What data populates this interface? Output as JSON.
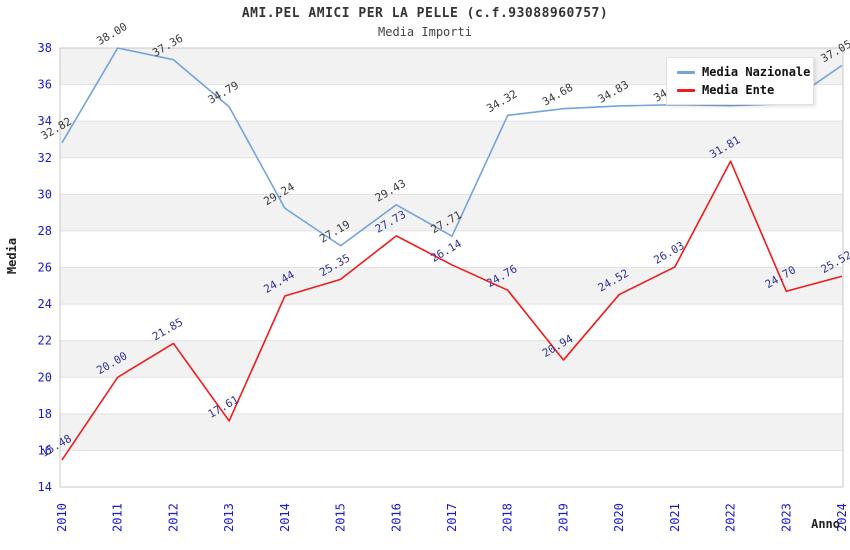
{
  "chart": {
    "title": "AMI.PEL AMICI PER LA PELLE (c.f.93088960757)",
    "subtitle": "Media Importi"
  },
  "legend": {
    "items": [
      {
        "label": "Media Nazionale",
        "color": "#74A3DC"
      },
      {
        "label": "Media Ente",
        "color": "#EE1C1C"
      }
    ]
  },
  "axes": {
    "x_title": "Anno",
    "y_title": "Media"
  },
  "chart_data": {
    "type": "line",
    "title": "AMI.PEL AMICI PER LA PELLE (c.f.93088960757)",
    "subtitle": "Media Importi",
    "xlabel": "Anno",
    "ylabel": "Media",
    "x": [
      "2010",
      "2011",
      "2012",
      "2013",
      "2014",
      "2015",
      "2016",
      "2017",
      "2018",
      "2019",
      "2020",
      "2021",
      "2022",
      "2023",
      "2024"
    ],
    "ylim": [
      14,
      38
    ],
    "ytick_step": 2,
    "grid": true,
    "legend_position": "top-right",
    "series": [
      {
        "name": "Media Nazionale",
        "color": "#74A3DC",
        "label_color": "#3C3C3C",
        "values": [
          32.82,
          38.0,
          37.36,
          34.79,
          29.24,
          27.19,
          29.43,
          27.71,
          34.32,
          34.68,
          34.83,
          34.9,
          34.85,
          34.95,
          37.05
        ]
      },
      {
        "name": "Media Ente",
        "color": "#EE1C1C",
        "label_color": "#333399",
        "values": [
          15.48,
          20.0,
          21.85,
          17.61,
          24.44,
          25.35,
          27.73,
          26.14,
          24.76,
          20.94,
          24.52,
          26.03,
          31.81,
          24.7,
          25.52
        ]
      }
    ],
    "style": {
      "band_fill": "#F2F2F2",
      "grid_color": "#E2E2E2",
      "plot_border_color": "#C8C8C8",
      "tick_label_color": "#1A1ACD"
    }
  }
}
